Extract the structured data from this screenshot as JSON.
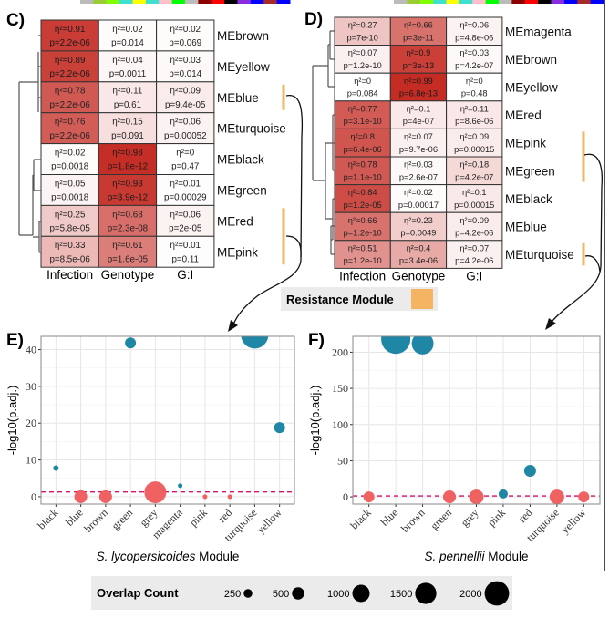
{
  "colors": {
    "sig": "#1f87a5",
    "nonsig": "#f06161",
    "threshold": "#d6106a",
    "heat_high": "#c42a22",
    "resistance": "#f5b461"
  },
  "panel_c": {
    "label": "C)",
    "columns": [
      "Infection",
      "Genotype",
      "G:I"
    ],
    "rows": [
      {
        "module": "MEbrown",
        "resistance": false,
        "cells": [
          [
            "η²=0.91",
            "p=2.2e-06",
            0.91
          ],
          [
            "η²=0.02",
            "p=0.014",
            0.02
          ],
          [
            "η²=0.02",
            "p=0.069",
            0.02
          ]
        ]
      },
      {
        "module": "MEyellow",
        "resistance": false,
        "cells": [
          [
            "η²=0.89",
            "p=2.2e-06",
            0.89
          ],
          [
            "η²=0.04",
            "p=0.0011",
            0.04
          ],
          [
            "η²=0.03",
            "p=0.014",
            0.03
          ]
        ]
      },
      {
        "module": "MEblue",
        "resistance": true,
        "cells": [
          [
            "η²=0.78",
            "p=2.2e-06",
            0.78
          ],
          [
            "η²=0.11",
            "p=0.61",
            0.11
          ],
          [
            "η²=0.09",
            "p=9.4e-05",
            0.09
          ]
        ]
      },
      {
        "module": "MEturquoise",
        "resistance": false,
        "cells": [
          [
            "η²=0.76",
            "p=2.2e-06",
            0.76
          ],
          [
            "η²=0.15",
            "p=0.091",
            0.15
          ],
          [
            "η²=0.06",
            "p=0.00052",
            0.06
          ]
        ]
      },
      {
        "module": "MEblack",
        "resistance": false,
        "cells": [
          [
            "η²=0.02",
            "p=0.0018",
            0.02
          ],
          [
            "η²=0.98",
            "p=1.8e-12",
            0.98
          ],
          [
            "η²=0",
            "p=0.47",
            0
          ]
        ]
      },
      {
        "module": "MEgreen",
        "resistance": false,
        "cells": [
          [
            "η²=0.05",
            "p=0.0018",
            0.05
          ],
          [
            "η²=0.93",
            "p=3.9e-12",
            0.93
          ],
          [
            "η²=0.01",
            "p=0.00029",
            0.01
          ]
        ]
      },
      {
        "module": "MEred",
        "resistance": true,
        "cells": [
          [
            "η²=0.25",
            "p=5.8e-05",
            0.25
          ],
          [
            "η²=0.68",
            "p=2.3e-08",
            0.68
          ],
          [
            "η²=0.06",
            "p=2e-05",
            0.06
          ]
        ]
      },
      {
        "module": "MEpink",
        "resistance": true,
        "cells": [
          [
            "η²=0.33",
            "p=8.5e-06",
            0.33
          ],
          [
            "η²=0.61",
            "p=1.6e-05",
            0.61
          ],
          [
            "η²=0.01",
            "p=0.11",
            0.01
          ]
        ]
      }
    ]
  },
  "panel_d": {
    "label": "D)",
    "columns": [
      "Infection",
      "Genotype",
      "G:I"
    ],
    "rows": [
      {
        "module": "MEmagenta",
        "resistance": false,
        "cells": [
          [
            "η²=0.27",
            "p=7e-10",
            0.27
          ],
          [
            "η²=0.66",
            "p=3e-11",
            0.66
          ],
          [
            "η²=0.06",
            "p=4.8e-06",
            0.06
          ]
        ]
      },
      {
        "module": "MEbrown",
        "resistance": false,
        "cells": [
          [
            "η²=0.07",
            "p=1.2e-10",
            0.07
          ],
          [
            "η²=0.9",
            "p=3e-13",
            0.9
          ],
          [
            "η²=0.03",
            "p=4.2e-07",
            0.03
          ]
        ]
      },
      {
        "module": "MEyellow",
        "resistance": false,
        "cells": [
          [
            "η²=0",
            "p=0.084",
            0
          ],
          [
            "η²=0.99",
            "p=6.8e-13",
            0.99
          ],
          [
            "η²=0",
            "p=0.48",
            0
          ]
        ]
      },
      {
        "module": "MEred",
        "resistance": false,
        "cells": [
          [
            "η²=0.77",
            "p=3.1e-10",
            0.77
          ],
          [
            "η²=0.1",
            "p=4e-07",
            0.1
          ],
          [
            "η²=0.11",
            "p=8.6e-06",
            0.11
          ]
        ]
      },
      {
        "module": "MEpink",
        "resistance": true,
        "cells": [
          [
            "η²=0.8",
            "p=6.4e-06",
            0.8
          ],
          [
            "η²=0.07",
            "p=9.7e-06",
            0.07
          ],
          [
            "η²=0.09",
            "p=0.00015",
            0.09
          ]
        ]
      },
      {
        "module": "MEgreen",
        "resistance": true,
        "cells": [
          [
            "η²=0.78",
            "p=1.1e-10",
            0.78
          ],
          [
            "η²=0.03",
            "p=2.6e-07",
            0.03
          ],
          [
            "η²=0.18",
            "p=4.2e-07",
            0.18
          ]
        ]
      },
      {
        "module": "MEblack",
        "resistance": false,
        "cells": [
          [
            "η²=0.84",
            "p=1.2e-05",
            0.84
          ],
          [
            "η²=0.02",
            "p=0.00017",
            0.02
          ],
          [
            "η²=0.1",
            "p=0.00015",
            0.1
          ]
        ]
      },
      {
        "module": "MEblue",
        "resistance": false,
        "cells": [
          [
            "η²=0.66",
            "p=1.2e-10",
            0.66
          ],
          [
            "η²=0.23",
            "p=0.0049",
            0.23
          ],
          [
            "η²=0.09",
            "p=4.2e-06",
            0.09
          ]
        ]
      },
      {
        "module": "MEturquoise",
        "resistance": true,
        "cells": [
          [
            "η²=0.51",
            "p=1.2e-10",
            0.51
          ],
          [
            "η²=0.4",
            "p=3.4e-06",
            0.4
          ],
          [
            "η²=0.07",
            "p=4.2e-06",
            0.07
          ]
        ]
      }
    ]
  },
  "resistance_legend": {
    "label": "Resistance Module"
  },
  "chart_data": [
    {
      "panel": "E)",
      "type": "scatter",
      "ylabel": "-log10(p.adj.)",
      "xlabel_italic": "S. lycopersicoides",
      "xlabel_rest": " Module",
      "categories": [
        "black",
        "blue",
        "brown",
        "green",
        "grey",
        "magenta",
        "pink",
        "red",
        "turquoise",
        "yellow"
      ],
      "y": [
        7.8,
        0,
        0,
        41.8,
        1.2,
        3,
        0,
        0,
        44,
        18.8
      ],
      "overlap_count": [
        100,
        550,
        550,
        400,
        1600,
        70,
        70,
        70,
        2500,
        400
      ],
      "significant": [
        true,
        false,
        false,
        true,
        false,
        true,
        false,
        false,
        true,
        true
      ],
      "yticks": [
        0,
        10,
        20,
        30,
        40
      ],
      "ylim": [
        -2,
        43.6
      ],
      "threshold": 1.3,
      "grid": true
    },
    {
      "panel": "F)",
      "type": "scatter",
      "ylabel": "-log10(p.adj.)",
      "xlabel_italic": "S. pennellii",
      "xlabel_rest": " Module",
      "categories": [
        "black",
        "blue",
        "brown",
        "green",
        "grey",
        "pink",
        "red",
        "turquoise",
        "yellow"
      ],
      "y": [
        0,
        218,
        212,
        0,
        0,
        4,
        36,
        0,
        0
      ],
      "overlap_count": [
        400,
        2850,
        1600,
        550,
        710,
        280,
        470,
        710,
        400
      ],
      "significant": [
        false,
        true,
        true,
        false,
        false,
        true,
        true,
        false,
        false
      ],
      "yticks": [
        0,
        50,
        100,
        150,
        200
      ],
      "ylim": [
        -10,
        222
      ],
      "threshold": 1.3,
      "grid": true
    }
  ],
  "size_legend": {
    "title": "Overlap Count",
    "values": [
      250,
      500,
      1000,
      1500,
      2000
    ]
  }
}
